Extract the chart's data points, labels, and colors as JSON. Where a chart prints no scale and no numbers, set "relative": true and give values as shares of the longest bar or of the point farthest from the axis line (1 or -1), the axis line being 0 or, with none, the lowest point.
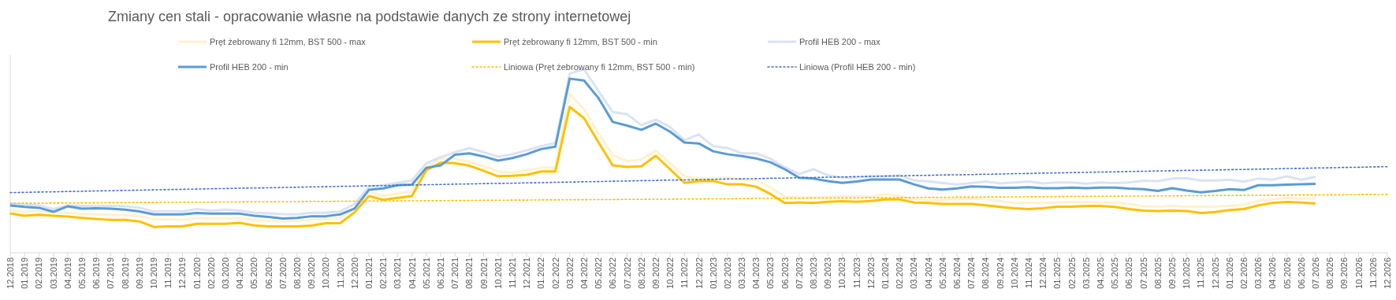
{
  "chart_data": {
    "type": "line",
    "relative": true,
    "legend": "top",
    "title": "Zmiany cen stali - opracowanie własne na podstawie danych ze strony internetowej",
    "categories": [
      "12.2018",
      "01.2019",
      "02.2019",
      "03.2019",
      "04.2019",
      "05.2019",
      "06.2019",
      "07.2019",
      "08.2019",
      "09.2019",
      "10.2019",
      "11.2019",
      "12.2019",
      "01.2020",
      "02.2020",
      "03.2020",
      "04.2020",
      "05.2020",
      "06.2020",
      "07.2020",
      "08.2020",
      "09.2020",
      "10.2020",
      "11.2020",
      "12.2020",
      "01.2021",
      "02.2021",
      "03.2021",
      "04.2021",
      "05.2021",
      "06.2021",
      "07.2021",
      "08.2021",
      "09.2021",
      "10.2021",
      "11.2021",
      "12.2021",
      "01.2022",
      "02.2022",
      "03.2022",
      "04.2022",
      "05.2022",
      "06.2022",
      "07.2022",
      "08.2022",
      "09.2022",
      "10.2022",
      "11.2022",
      "12.2022",
      "01.2023",
      "02.2023",
      "03.2023",
      "04.2023",
      "05.2023",
      "06.2023",
      "07.2023",
      "08.2023",
      "09.2023",
      "10.2023",
      "11.2023",
      "12.2023",
      "01.2024",
      "02.2024",
      "03.2024",
      "04.2024",
      "05.2024",
      "06.2024",
      "07.2024",
      "08.2024",
      "09.2024",
      "10.2024",
      "11.2024",
      "12.2024",
      "01.2025",
      "02.2025",
      "03.2025",
      "04.2025",
      "05.2025",
      "06.2025",
      "07.2025",
      "08.2025",
      "09.2025",
      "10.2025",
      "11.2025",
      "12.2025",
      "01.2026",
      "02.2026",
      "03.2026",
      "04.2026",
      "05.2026",
      "06.2026",
      "07.2026",
      "08.2026",
      "09.2026",
      "10.2026",
      "11.2026",
      "12.2026"
    ],
    "series": [
      {
        "name": "Pręt żebrowany fi 12mm, BST 500 - max",
        "color": "#fff2cc",
        "values": [
          0.233,
          0.223,
          0.225,
          0.222,
          0.217,
          0.212,
          0.209,
          0.207,
          0.205,
          0.2,
          0.182,
          0.184,
          0.179,
          0.19,
          0.187,
          0.187,
          0.189,
          0.177,
          0.174,
          0.171,
          0.174,
          0.179,
          0.184,
          0.19,
          0.241,
          0.332,
          0.31,
          0.323,
          0.335,
          0.471,
          0.512,
          0.512,
          0.496,
          0.471,
          0.443,
          0.437,
          0.45,
          0.463,
          0.463,
          0.865,
          0.783,
          0.652,
          0.532,
          0.499,
          0.509,
          0.558,
          0.488,
          0.417,
          0.406,
          0.401,
          0.411,
          0.397,
          0.397,
          0.356,
          0.304,
          0.302,
          0.302,
          0.305,
          0.309,
          0.309,
          0.305,
          0.319,
          0.309,
          0.291,
          0.286,
          0.29,
          0.294,
          0.294,
          0.294,
          0.282,
          0.271,
          0.274,
          0.271,
          0.274,
          0.277,
          0.277,
          0.274,
          0.274,
          0.266,
          0.253,
          0.25,
          0.255,
          0.251,
          0.251,
          0.251,
          0.255,
          0.261,
          0.282,
          0.29,
          0.299,
          0.295,
          0.295,
          null,
          null,
          null,
          null,
          null
        ]
      },
      {
        "name": "Pręt żebrowany fi 12mm, BST 500 - min",
        "color": "#ffc000",
        "values": [
          0.215,
          0.202,
          0.207,
          0.202,
          0.197,
          0.19,
          0.184,
          0.179,
          0.179,
          0.171,
          0.141,
          0.144,
          0.144,
          0.158,
          0.158,
          0.158,
          0.163,
          0.149,
          0.144,
          0.144,
          0.144,
          0.148,
          0.161,
          0.161,
          0.22,
          0.309,
          0.289,
          0.299,
          0.309,
          0.45,
          0.491,
          0.488,
          0.475,
          0.447,
          0.417,
          0.42,
          0.425,
          0.443,
          0.443,
          0.795,
          0.734,
          0.603,
          0.476,
          0.468,
          0.471,
          0.529,
          0.455,
          0.381,
          0.391,
          0.391,
          0.373,
          0.373,
          0.36,
          0.32,
          0.271,
          0.274,
          0.271,
          0.278,
          0.281,
          0.278,
          0.282,
          0.291,
          0.291,
          0.274,
          0.271,
          0.266,
          0.266,
          0.266,
          0.259,
          0.25,
          0.242,
          0.238,
          0.243,
          0.251,
          0.251,
          0.255,
          0.255,
          0.25,
          0.238,
          0.23,
          0.227,
          0.23,
          0.227,
          0.217,
          0.222,
          0.233,
          0.238,
          0.258,
          0.272,
          0.277,
          0.274,
          0.268,
          null,
          null,
          null,
          null,
          null
        ]
      },
      {
        "name": "Profil HEB 200 - max",
        "color": "#dae3f3",
        "values": [
          0.269,
          0.263,
          0.258,
          0.238,
          0.258,
          0.255,
          0.255,
          0.255,
          0.253,
          0.245,
          0.225,
          0.228,
          0.225,
          0.238,
          0.23,
          0.235,
          0.23,
          0.218,
          0.215,
          0.21,
          0.209,
          0.218,
          0.218,
          0.225,
          0.266,
          0.361,
          0.368,
          0.381,
          0.394,
          0.488,
          0.521,
          0.548,
          0.57,
          0.548,
          0.524,
          0.537,
          0.558,
          0.581,
          0.598,
          0.977,
          1,
          0.882,
          0.767,
          0.755,
          0.696,
          0.726,
          0.685,
          0.614,
          0.644,
          0.581,
          0.571,
          0.542,
          0.542,
          0.512,
          0.466,
          0.43,
          0.455,
          0.422,
          0.41,
          0.41,
          0.417,
          0.417,
          0.422,
          0.394,
          0.389,
          0.38,
          0.372,
          0.38,
          0.388,
          0.378,
          0.383,
          0.388,
          0.378,
          0.383,
          0.383,
          0.377,
          0.383,
          0.38,
          0.383,
          0.393,
          0.391,
          0.404,
          0.407,
          0.394,
          0.394,
          0.398,
          0.388,
          0.404,
          0.398,
          0.416,
          0.398,
          0.414,
          null,
          null,
          null,
          null,
          null
        ]
      },
      {
        "name": "Profil HEB 200 - min",
        "color": "#5b9bd5",
        "values": [
          0.258,
          0.25,
          0.245,
          0.223,
          0.253,
          0.24,
          0.243,
          0.24,
          0.235,
          0.225,
          0.209,
          0.209,
          0.209,
          0.217,
          0.213,
          0.213,
          0.213,
          0.202,
          0.195,
          0.187,
          0.19,
          0.199,
          0.199,
          0.209,
          0.241,
          0.343,
          0.351,
          0.368,
          0.371,
          0.463,
          0.476,
          0.534,
          0.542,
          0.525,
          0.502,
          0.516,
          0.537,
          0.565,
          0.578,
          0.949,
          0.939,
          0.844,
          0.713,
          0.693,
          0.67,
          0.704,
          0.66,
          0.601,
          0.596,
          0.553,
          0.537,
          0.527,
          0.514,
          0.493,
          0.455,
          0.409,
          0.404,
          0.391,
          0.381,
          0.388,
          0.399,
          0.399,
          0.399,
          0.373,
          0.351,
          0.344,
          0.351,
          0.362,
          0.359,
          0.354,
          0.354,
          0.357,
          0.352,
          0.352,
          0.355,
          0.352,
          0.355,
          0.355,
          0.35,
          0.347,
          0.337,
          0.352,
          0.339,
          0.329,
          0.337,
          0.347,
          0.342,
          0.368,
          0.368,
          0.371,
          0.373,
          0.376,
          null,
          null,
          null,
          null,
          null
        ]
      },
      {
        "name": "Liniowa (Pręt żebrowany fi 12mm, BST 500 - min)",
        "color": "#ffc000",
        "line_style": "dotted",
        "values": [
          0.269,
          0.27,
          0.27,
          0.271,
          0.271,
          0.272,
          0.272,
          0.273,
          0.273,
          0.274,
          0.274,
          0.275,
          0.275,
          0.276,
          0.276,
          0.277,
          0.277,
          0.278,
          0.278,
          0.279,
          0.279,
          0.28,
          0.28,
          0.281,
          0.281,
          0.282,
          0.282,
          0.283,
          0.283,
          0.284,
          0.284,
          0.285,
          0.285,
          0.286,
          0.286,
          0.287,
          0.287,
          0.288,
          0.288,
          0.289,
          0.289,
          0.29,
          0.29,
          0.291,
          0.291,
          0.292,
          0.292,
          0.293,
          0.293,
          0.294,
          0.294,
          0.295,
          0.296,
          0.296,
          0.297,
          0.297,
          0.298,
          0.298,
          0.299,
          0.299,
          0.3,
          0.3,
          0.301,
          0.301,
          0.302,
          0.302,
          0.303,
          0.303,
          0.304,
          0.304,
          0.305,
          0.305,
          0.306,
          0.306,
          0.307,
          0.307,
          0.308,
          0.308,
          0.309,
          0.309,
          0.31,
          0.31,
          0.311,
          0.311,
          0.312,
          0.312,
          0.313,
          0.313,
          0.314,
          0.314,
          0.315,
          0.315,
          0.316,
          0.316,
          0.317,
          0.317,
          0.318
        ]
      },
      {
        "name": "Liniowa (Profil HEB 200 - min)",
        "color": "#4472c4",
        "line_style": "dotted",
        "values": [
          0.328,
          0.329,
          0.331,
          0.332,
          0.334,
          0.335,
          0.337,
          0.338,
          0.34,
          0.341,
          0.343,
          0.344,
          0.346,
          0.347,
          0.349,
          0.35,
          0.352,
          0.353,
          0.354,
          0.356,
          0.357,
          0.359,
          0.36,
          0.362,
          0.363,
          0.365,
          0.366,
          0.368,
          0.369,
          0.371,
          0.372,
          0.374,
          0.375,
          0.377,
          0.378,
          0.379,
          0.381,
          0.382,
          0.384,
          0.385,
          0.387,
          0.388,
          0.39,
          0.391,
          0.393,
          0.394,
          0.396,
          0.397,
          0.399,
          0.4,
          0.402,
          0.403,
          0.404,
          0.406,
          0.407,
          0.409,
          0.41,
          0.412,
          0.413,
          0.415,
          0.416,
          0.418,
          0.419,
          0.421,
          0.422,
          0.424,
          0.425,
          0.426,
          0.428,
          0.429,
          0.431,
          0.432,
          0.434,
          0.435,
          0.437,
          0.438,
          0.44,
          0.441,
          0.443,
          0.444,
          0.446,
          0.447,
          0.449,
          0.45,
          0.451,
          0.453,
          0.454,
          0.456,
          0.457,
          0.459,
          0.46,
          0.462,
          0.463,
          0.465,
          0.466,
          0.468,
          0.469
        ]
      }
    ]
  }
}
